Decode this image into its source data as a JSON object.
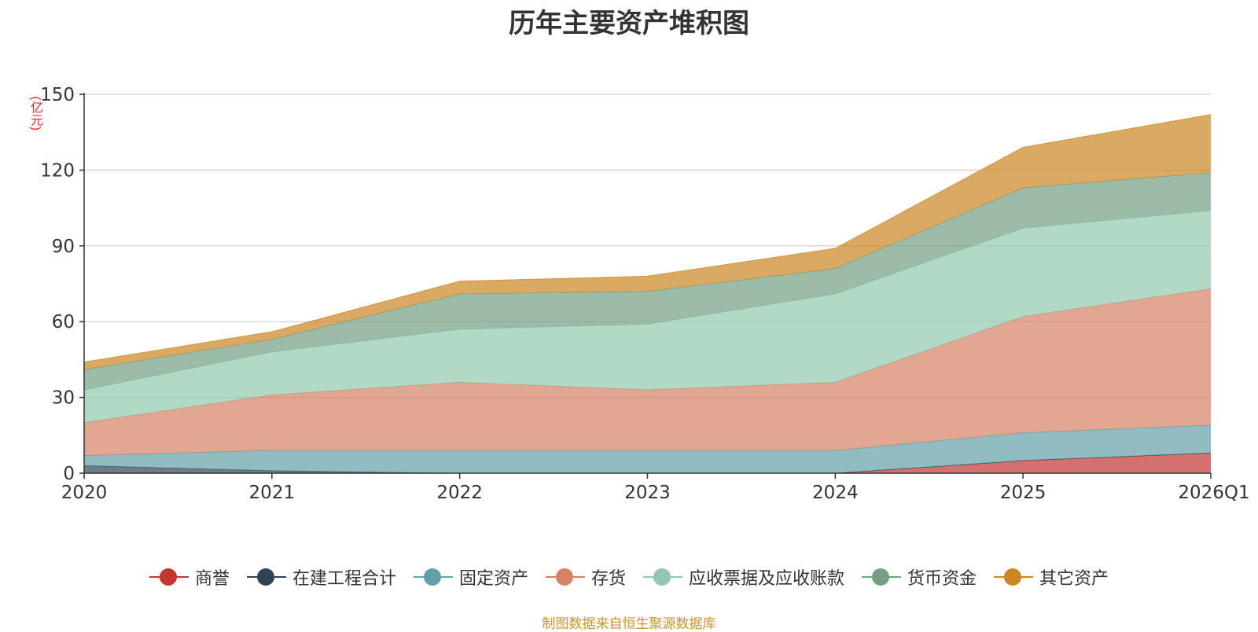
{
  "chart_data": {
    "type": "area",
    "stacked": true,
    "title": "历年主要资产堆积图",
    "ylabel": "(亿元)",
    "xlabel": "",
    "categories": [
      "2020",
      "2021",
      "2022",
      "2023",
      "2024",
      "2025",
      "2026Q1"
    ],
    "ylim": [
      0,
      150
    ],
    "yticks": [
      0,
      30,
      60,
      90,
      120,
      150
    ],
    "grid": true,
    "legend_position": "bottom",
    "series": [
      {
        "name": "商誉",
        "color": "#c23531",
        "values": [
          0,
          0,
          0,
          0,
          0,
          5,
          8
        ]
      },
      {
        "name": "在建工程合计",
        "color": "#2f4554",
        "values": [
          3,
          1,
          0,
          0,
          0,
          0,
          0
        ]
      },
      {
        "name": "固定资产",
        "color": "#61a0a8",
        "values": [
          4,
          8,
          9,
          9,
          9,
          11,
          11
        ]
      },
      {
        "name": "存货",
        "color": "#d48265",
        "values": [
          13,
          22,
          27,
          24,
          27,
          46,
          54
        ]
      },
      {
        "name": "应收票据及应收账款",
        "color": "#91c7ae",
        "values": [
          13,
          17,
          21,
          26,
          35,
          35,
          31
        ]
      },
      {
        "name": "货币资金",
        "color": "#749f83",
        "values": [
          8,
          5,
          14,
          13,
          10,
          16,
          15
        ]
      },
      {
        "name": "其它资产",
        "color": "#ca8622",
        "values": [
          3,
          3,
          5,
          6,
          8,
          16,
          23
        ]
      }
    ]
  },
  "footer": "制图数据来自恒生聚源数据库"
}
